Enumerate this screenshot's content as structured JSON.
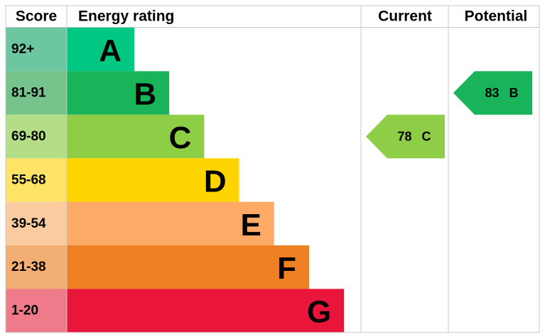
{
  "header": {
    "score": "Score",
    "rating": "Energy rating",
    "current": "Current",
    "potential": "Potential"
  },
  "bands": [
    {
      "score": "92+",
      "letter": "A",
      "color": "#00c781",
      "score_color": "#6cc6a0"
    },
    {
      "score": "81-91",
      "letter": "B",
      "color": "#19b459",
      "score_color": "#76c48c"
    },
    {
      "score": "69-80",
      "letter": "C",
      "color": "#8dce46",
      "score_color": "#b4dd87"
    },
    {
      "score": "55-68",
      "letter": "D",
      "color": "#ffd500",
      "score_color": "#ffe366"
    },
    {
      "score": "39-54",
      "letter": "E",
      "color": "#fcaa65",
      "score_color": "#f9cb9f"
    },
    {
      "score": "21-38",
      "letter": "F",
      "color": "#ef8023",
      "score_color": "#f3ae73"
    },
    {
      "score": "1-20",
      "letter": "G",
      "color": "#e9153b",
      "score_color": "#ef7a89"
    }
  ],
  "current": {
    "value": 78,
    "letter": "C"
  },
  "potential": {
    "value": 83,
    "letter": "B"
  }
}
